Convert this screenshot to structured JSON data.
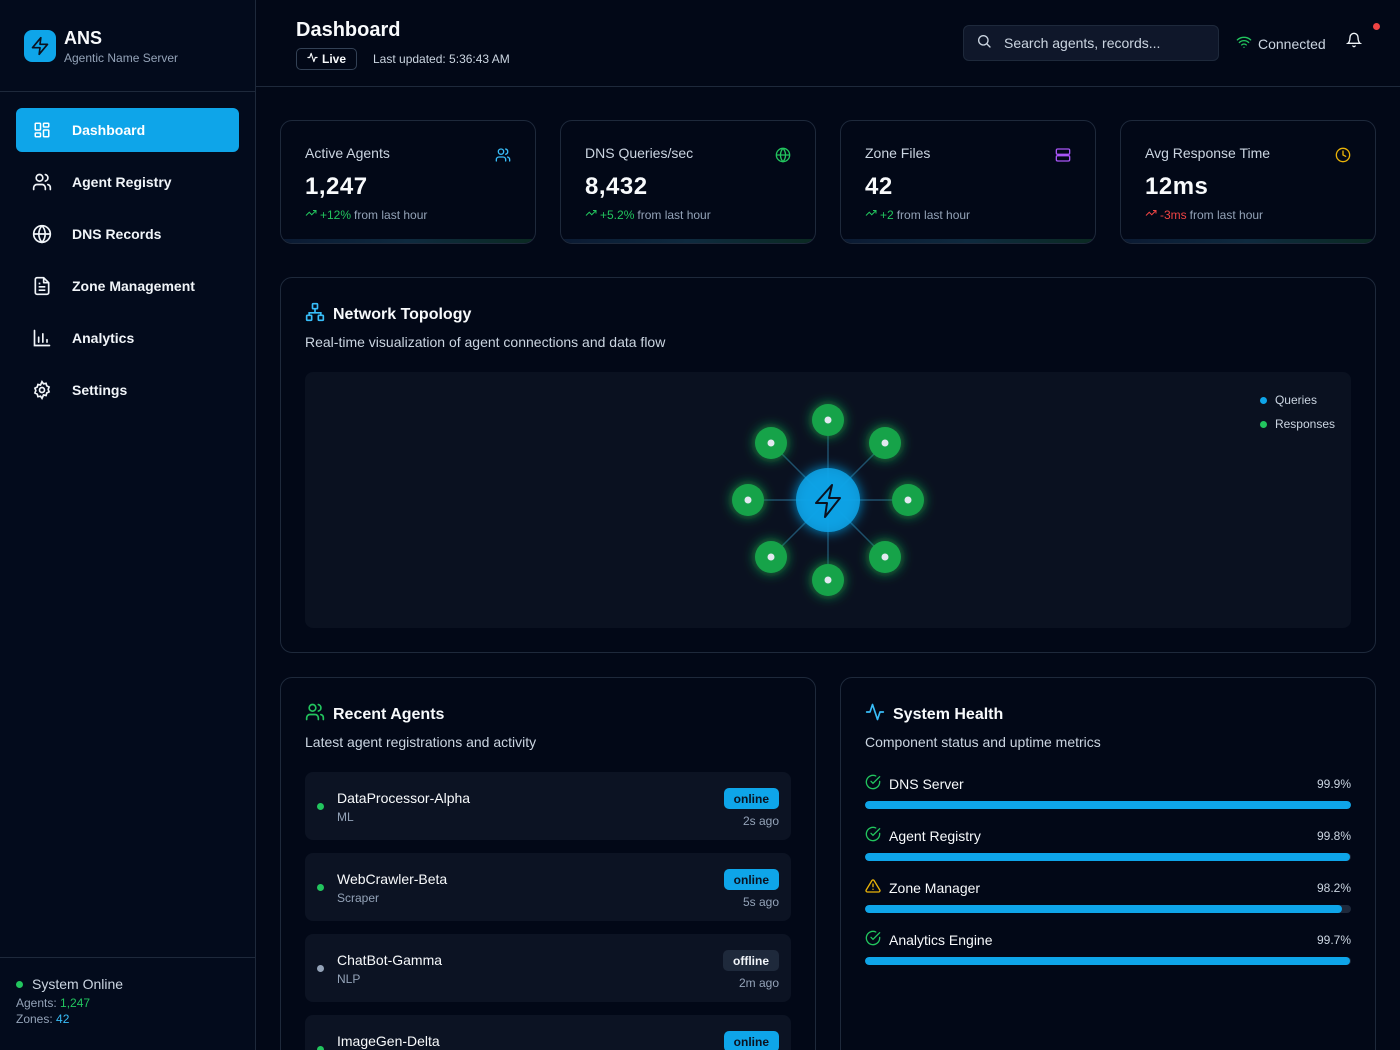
{
  "app": {
    "name": "ANS",
    "subtitle": "Agentic Name Server"
  },
  "sidebar": {
    "items": [
      {
        "label": "Dashboard",
        "icon": "dashboard-icon",
        "active": true
      },
      {
        "label": "Agent Registry",
        "icon": "users-icon",
        "active": false
      },
      {
        "label": "DNS Records",
        "icon": "globe-icon",
        "active": false
      },
      {
        "label": "Zone Management",
        "icon": "file-text-icon",
        "active": false
      },
      {
        "label": "Analytics",
        "icon": "bar-chart-icon",
        "active": false
      },
      {
        "label": "Settings",
        "icon": "gear-icon",
        "active": false
      }
    ],
    "footer": {
      "status": "System Online",
      "agents_label": "Agents: ",
      "agents_value": "1,247",
      "zones_label": "Zones: ",
      "zones_value": "42"
    }
  },
  "header": {
    "title": "Dashboard",
    "live": "Live",
    "last_updated": "Last updated: 5:36:43 AM",
    "search_placeholder": "Search agents, records...",
    "connection": "Connected"
  },
  "stats": [
    {
      "title": "Active Agents",
      "value": "1,247",
      "change": "+12%",
      "change_dir": "up",
      "suffix": "from last hour",
      "icon": "users-icon",
      "icon_color": "#38bdf8"
    },
    {
      "title": "DNS Queries/sec",
      "value": "8,432",
      "change": "+5.2%",
      "change_dir": "up",
      "suffix": "from last hour",
      "icon": "globe-icon",
      "icon_color": "#22c55e"
    },
    {
      "title": "Zone Files",
      "value": "42",
      "change": "+2",
      "change_dir": "up",
      "suffix": "from last hour",
      "icon": "server-icon",
      "icon_color": "#a855f7"
    },
    {
      "title": "Avg Response Time",
      "value": "12ms",
      "change": "-3ms",
      "change_dir": "down",
      "suffix": "from last hour",
      "icon": "clock-icon",
      "icon_color": "#eab308"
    }
  ],
  "topology": {
    "title": "Network Topology",
    "subtitle": "Real-time visualization of agent connections and data flow",
    "legend": [
      {
        "label": "Queries",
        "color": "#0ea5e9"
      },
      {
        "label": "Responses",
        "color": "#22c55e"
      }
    ]
  },
  "recent_agents": {
    "title": "Recent Agents",
    "subtitle": "Latest agent registrations and activity",
    "items": [
      {
        "name": "DataProcessor-Alpha",
        "type": "ML",
        "status": "online",
        "time": "2s ago"
      },
      {
        "name": "WebCrawler-Beta",
        "type": "Scraper",
        "status": "online",
        "time": "5s ago"
      },
      {
        "name": "ChatBot-Gamma",
        "type": "NLP",
        "status": "offline",
        "time": "2m ago"
      },
      {
        "name": "ImageGen-Delta",
        "type": "",
        "status": "online",
        "time": ""
      }
    ]
  },
  "system_health": {
    "title": "System Health",
    "subtitle": "Component status and uptime metrics",
    "items": [
      {
        "name": "DNS Server",
        "uptime": "99.9%",
        "fraction": 0.999,
        "state": "ok"
      },
      {
        "name": "Agent Registry",
        "uptime": "99.8%",
        "fraction": 0.998,
        "state": "ok"
      },
      {
        "name": "Zone Manager",
        "uptime": "98.2%",
        "fraction": 0.982,
        "state": "warn"
      },
      {
        "name": "Analytics Engine",
        "uptime": "99.7%",
        "fraction": 0.997,
        "state": "ok"
      }
    ]
  },
  "colors": {
    "accent": "#0ea5e9",
    "success": "#22c55e",
    "danger": "#ef4444",
    "warning": "#eab308",
    "background": "#020817"
  }
}
